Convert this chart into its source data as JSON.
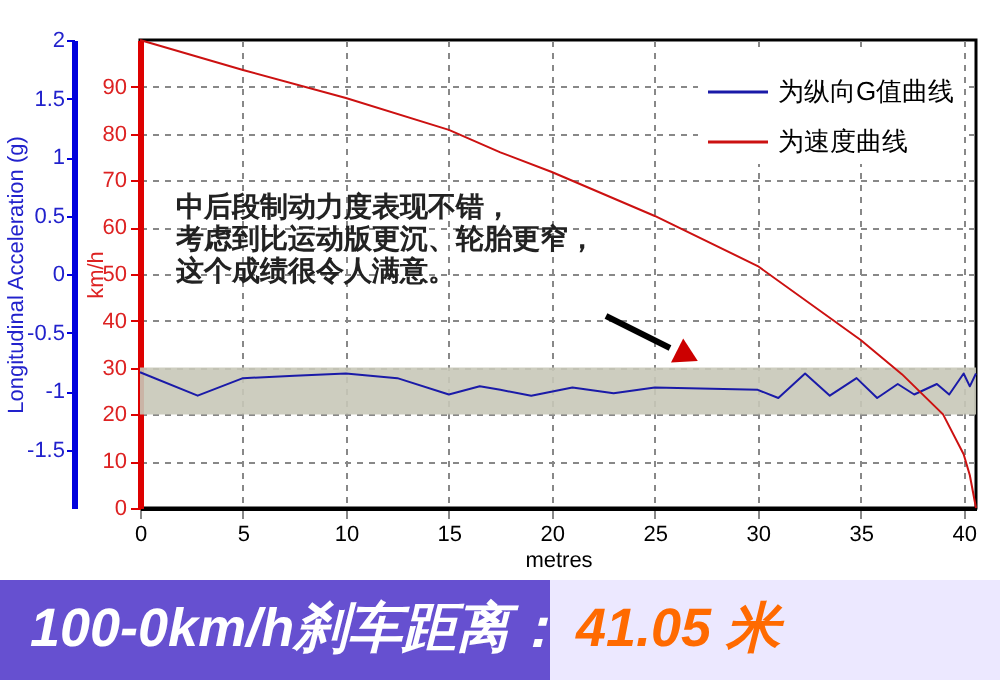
{
  "chart_data": {
    "type": "line",
    "xlabel": "metres",
    "ylabel": "Longitudinal Acceleration (g)",
    "y2label": "km/h",
    "xlim": [
      0,
      40.6
    ],
    "xticks": [
      0,
      5,
      10,
      15,
      20,
      25,
      30,
      35,
      40
    ],
    "ylim": [
      -2,
      2
    ],
    "yticks": [
      -1.5,
      -1,
      -0.5,
      0,
      0.5,
      1,
      1.5,
      2
    ],
    "y2lim": [
      0,
      100
    ],
    "y2ticks": [
      0,
      10,
      20,
      30,
      40,
      50,
      60,
      70,
      80,
      90
    ],
    "series": [
      {
        "name": "为纵向G值曲线",
        "color": "#1a1aa8",
        "x": [
          0,
          2.8,
          5,
          7.5,
          10,
          12.5,
          15,
          16.5,
          17.5,
          19,
          21,
          23,
          25,
          30,
          31,
          32.3,
          33.5,
          34.8,
          35.8,
          36.8,
          37.6,
          38.7,
          39.3,
          40,
          40.3,
          40.6
        ],
        "values": [
          -0.84,
          -1.04,
          -0.89,
          -0.87,
          -0.85,
          -0.89,
          -1.03,
          -0.96,
          -0.99,
          -1.04,
          -0.97,
          -1.02,
          -0.97,
          -0.99,
          -1.06,
          -0.85,
          -1.04,
          -0.89,
          -1.06,
          -0.94,
          -1.03,
          -0.94,
          -1.03,
          -0.85,
          -0.96,
          -0.85
        ]
      },
      {
        "name": "为速度曲线",
        "color": "#cc1111",
        "axis": "y2",
        "x": [
          0,
          5,
          10,
          15,
          17.5,
          20,
          25,
          30,
          35,
          37,
          39,
          40,
          40.3,
          40.6
        ],
        "values": [
          100,
          93.6,
          87.6,
          80.8,
          76,
          71.8,
          62.4,
          51.7,
          35.9,
          28.6,
          20,
          11.5,
          7,
          0
        ]
      }
    ],
    "bands": [
      {
        "axis": "y2",
        "from": 20,
        "to": 30,
        "color": "#c8c8b8"
      }
    ],
    "annotations": [
      "中后段制动力度表现不错，",
      "考虑到比运动版更沉、轮胎更窄，",
      "这个成绩很令人满意。",
      "100-0km/h刹车距离：",
      "41.05 米"
    ],
    "grid": true,
    "legend": "top right",
    "marker": "none",
    "line_style": "solid"
  }
}
